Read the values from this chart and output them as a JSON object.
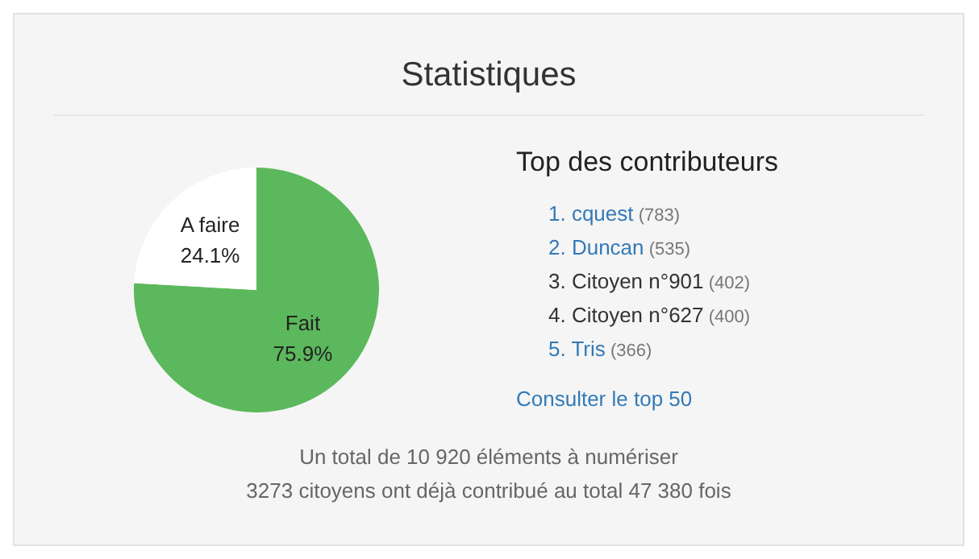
{
  "chart_data": [
    {
      "type": "pie",
      "title": "Statistiques",
      "categories": [
        "Fait",
        "A faire"
      ],
      "values": [
        75.9,
        24.1
      ],
      "colors": [
        "#5cb85c",
        "#ffffff"
      ],
      "value_labels": [
        "75.9%",
        "24.1%"
      ],
      "legend": false,
      "annotations": [
        "Un total de 10 920 éléments à numériser",
        "3273 citoyens ont déjà contribué au total 47 380 fois"
      ]
    },
    {
      "type": "other",
      "title": "Top des contributeurs",
      "annotations": [
        "1. cquest (783)",
        "2. Duncan (535)",
        "3. Citoyen n°901 (402)",
        "4. Citoyen n°627 (400)",
        "5. Tris (366)",
        "Consulter le top 50"
      ],
      "colors": [
        "#337ab7",
        "#337ab7",
        "#333333",
        "#333333",
        "#337ab7",
        "#337ab7"
      ]
    }
  ]
}
